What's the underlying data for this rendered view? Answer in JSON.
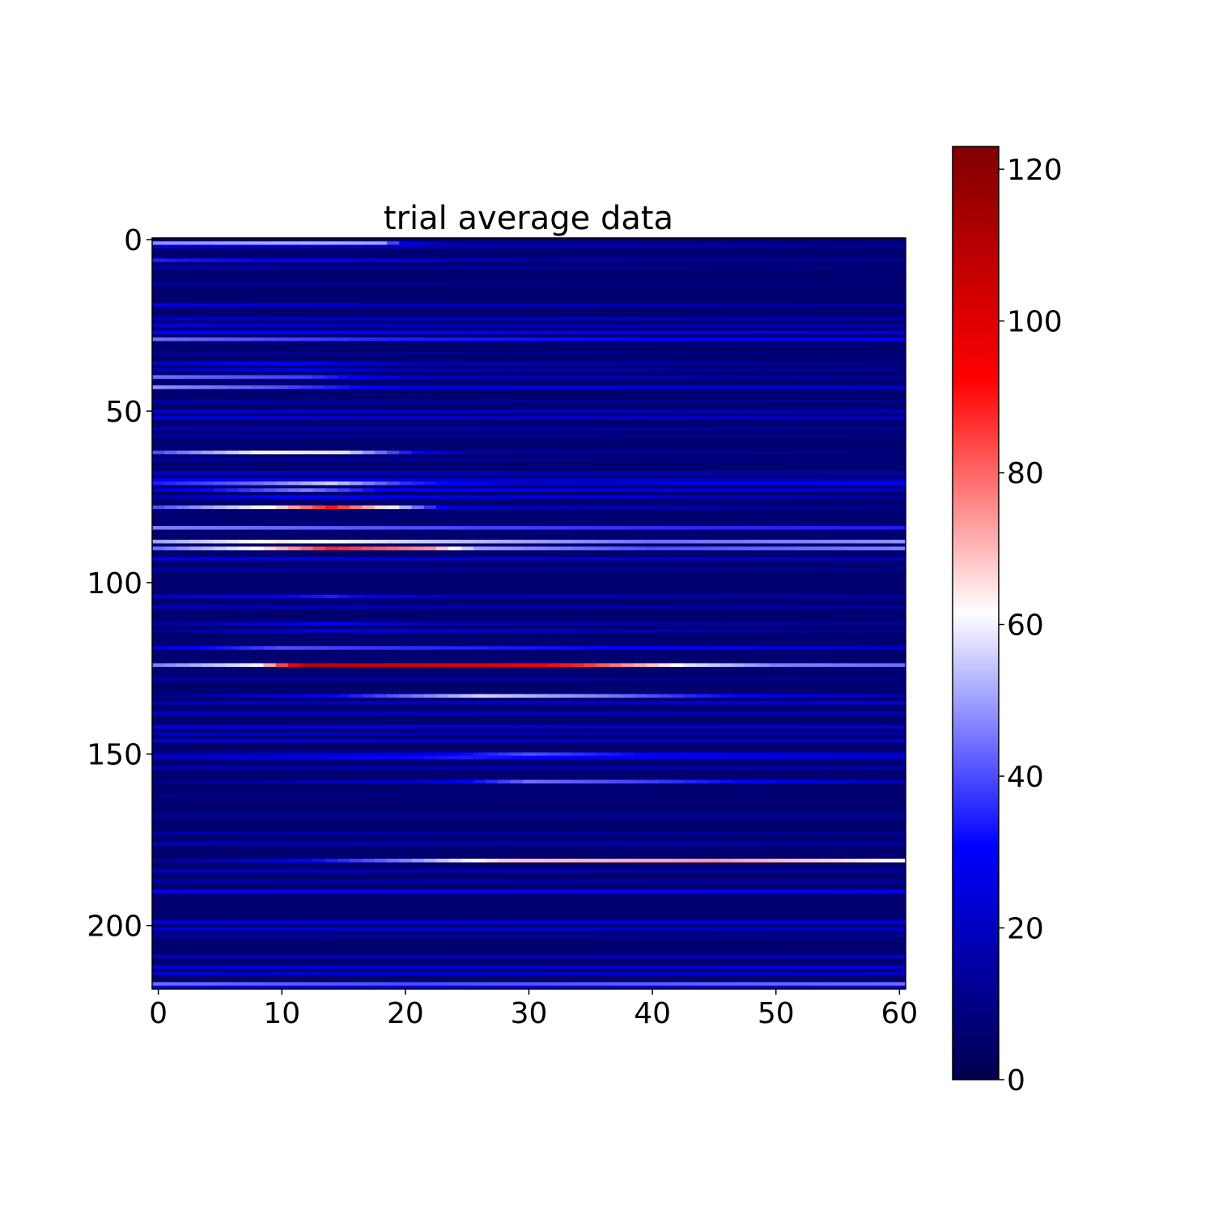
{
  "chart_data": {
    "type": "heatmap",
    "title": "trial average data",
    "xlabel": "",
    "ylabel": "",
    "n_columns": 61,
    "n_rows": 219,
    "xlim": [
      -0.5,
      60.5
    ],
    "ylim": [
      218.5,
      -0.5
    ],
    "x_ticks": [
      0,
      10,
      20,
      30,
      40,
      50,
      60
    ],
    "x_tick_labels": [
      "0",
      "10",
      "20",
      "30",
      "40",
      "50",
      "60"
    ],
    "y_ticks": [
      0,
      50,
      100,
      150,
      200
    ],
    "y_tick_labels": [
      "0",
      "50",
      "100",
      "150",
      "200"
    ],
    "colormap": "seismic",
    "colormap_stops": [
      "#00004d",
      "#0000ff",
      "#ffffff",
      "#ff0000",
      "#800000"
    ],
    "value_range": [
      0,
      123
    ],
    "colorbar_ticks": [
      0,
      20,
      40,
      60,
      80,
      100,
      120
    ],
    "colorbar_tick_labels": [
      "0",
      "20",
      "40",
      "60",
      "80",
      "100",
      "120"
    ],
    "background_level": 6,
    "rows": [
      {
        "row": 1,
        "profile": [
          [
            0,
            48
          ],
          [
            12,
            52
          ],
          [
            18,
            50
          ],
          [
            20,
            28
          ],
          [
            24,
            14
          ],
          [
            60,
            10
          ]
        ]
      },
      {
        "row": 2,
        "profile": [
          [
            0,
            22
          ],
          [
            20,
            18
          ],
          [
            60,
            10
          ]
        ]
      },
      {
        "row": 6,
        "profile": [
          [
            0,
            34
          ],
          [
            15,
            28
          ],
          [
            30,
            16
          ],
          [
            60,
            12
          ]
        ]
      },
      {
        "row": 8,
        "profile": [
          [
            0,
            16
          ],
          [
            60,
            8
          ]
        ]
      },
      {
        "row": 13,
        "profile": [
          [
            0,
            14
          ],
          [
            60,
            8
          ]
        ]
      },
      {
        "row": 19,
        "profile": [
          [
            0,
            26
          ],
          [
            20,
            20
          ],
          [
            60,
            14
          ]
        ]
      },
      {
        "row": 23,
        "profile": [
          [
            0,
            22
          ],
          [
            60,
            16
          ]
        ]
      },
      {
        "row": 25,
        "profile": [
          [
            0,
            24
          ],
          [
            20,
            18
          ],
          [
            60,
            14
          ]
        ]
      },
      {
        "row": 27,
        "profile": [
          [
            0,
            30
          ],
          [
            60,
            26
          ]
        ]
      },
      {
        "row": 29,
        "profile": [
          [
            0,
            44
          ],
          [
            20,
            34
          ],
          [
            60,
            28
          ]
        ]
      },
      {
        "row": 33,
        "profile": [
          [
            0,
            12
          ],
          [
            60,
            8
          ]
        ]
      },
      {
        "row": 36,
        "profile": [
          [
            0,
            20
          ],
          [
            10,
            30
          ],
          [
            20,
            18
          ],
          [
            60,
            10
          ]
        ]
      },
      {
        "row": 38,
        "profile": [
          [
            0,
            18
          ],
          [
            12,
            26
          ],
          [
            20,
            16
          ],
          [
            60,
            10
          ]
        ]
      },
      {
        "row": 40,
        "profile": [
          [
            0,
            44
          ],
          [
            12,
            38
          ],
          [
            20,
            22
          ],
          [
            60,
            12
          ]
        ]
      },
      {
        "row": 43,
        "profile": [
          [
            0,
            48
          ],
          [
            10,
            40
          ],
          [
            20,
            26
          ],
          [
            60,
            22
          ]
        ]
      },
      {
        "row": 47,
        "profile": [
          [
            0,
            16
          ],
          [
            60,
            10
          ]
        ]
      },
      {
        "row": 50,
        "profile": [
          [
            0,
            22
          ],
          [
            60,
            18
          ]
        ]
      },
      {
        "row": 52,
        "profile": [
          [
            0,
            26
          ],
          [
            60,
            20
          ]
        ]
      },
      {
        "row": 55,
        "profile": [
          [
            0,
            18
          ],
          [
            60,
            12
          ]
        ]
      },
      {
        "row": 57,
        "profile": [
          [
            0,
            14
          ],
          [
            60,
            10
          ]
        ]
      },
      {
        "row": 62,
        "profile": [
          [
            0,
            40
          ],
          [
            8,
            60
          ],
          [
            15,
            58
          ],
          [
            20,
            34
          ],
          [
            25,
            16
          ],
          [
            60,
            10
          ]
        ]
      },
      {
        "row": 64,
        "profile": [
          [
            0,
            14
          ],
          [
            60,
            8
          ]
        ]
      },
      {
        "row": 68,
        "profile": [
          [
            0,
            22
          ],
          [
            60,
            16
          ]
        ]
      },
      {
        "row": 70,
        "profile": [
          [
            0,
            28
          ],
          [
            12,
            24
          ],
          [
            60,
            16
          ]
        ]
      },
      {
        "row": 71,
        "profile": [
          [
            0,
            34
          ],
          [
            8,
            44
          ],
          [
            14,
            56
          ],
          [
            20,
            36
          ],
          [
            30,
            20
          ],
          [
            60,
            30
          ]
        ]
      },
      {
        "row": 73,
        "profile": [
          [
            0,
            24
          ],
          [
            12,
            46
          ],
          [
            18,
            30
          ],
          [
            60,
            22
          ]
        ]
      },
      {
        "row": 75,
        "profile": [
          [
            0,
            16
          ],
          [
            10,
            30
          ],
          [
            40,
            22
          ],
          [
            60,
            14
          ]
        ]
      },
      {
        "row": 78,
        "profile": [
          [
            0,
            40
          ],
          [
            9,
            62
          ],
          [
            14,
            90
          ],
          [
            18,
            66
          ],
          [
            24,
            22
          ],
          [
            60,
            10
          ]
        ]
      },
      {
        "row": 84,
        "profile": [
          [
            0,
            46
          ],
          [
            20,
            40
          ],
          [
            40,
            36
          ],
          [
            60,
            34
          ]
        ]
      },
      {
        "row": 88,
        "profile": [
          [
            0,
            50
          ],
          [
            10,
            64
          ],
          [
            20,
            56
          ],
          [
            40,
            44
          ],
          [
            60,
            48
          ]
        ]
      },
      {
        "row": 90,
        "profile": [
          [
            0,
            44
          ],
          [
            8,
            62
          ],
          [
            14,
            88
          ],
          [
            22,
            74
          ],
          [
            26,
            50
          ],
          [
            40,
            40
          ],
          [
            60,
            46
          ]
        ]
      },
      {
        "row": 93,
        "profile": [
          [
            0,
            26
          ],
          [
            60,
            18
          ]
        ]
      },
      {
        "row": 96,
        "profile": [
          [
            0,
            16
          ],
          [
            60,
            10
          ]
        ]
      },
      {
        "row": 104,
        "profile": [
          [
            0,
            22
          ],
          [
            14,
            34
          ],
          [
            24,
            20
          ],
          [
            60,
            14
          ]
        ]
      },
      {
        "row": 107,
        "profile": [
          [
            0,
            20
          ],
          [
            60,
            14
          ]
        ]
      },
      {
        "row": 112,
        "profile": [
          [
            0,
            14
          ],
          [
            14,
            30
          ],
          [
            22,
            18
          ],
          [
            60,
            12
          ]
        ]
      },
      {
        "row": 114,
        "profile": [
          [
            0,
            12
          ],
          [
            14,
            26
          ],
          [
            60,
            10
          ]
        ]
      },
      {
        "row": 119,
        "profile": [
          [
            0,
            26
          ],
          [
            10,
            40
          ],
          [
            20,
            36
          ],
          [
            40,
            30
          ],
          [
            60,
            22
          ]
        ]
      },
      {
        "row": 124,
        "profile": [
          [
            0,
            46
          ],
          [
            8,
            60
          ],
          [
            12,
            108
          ],
          [
            26,
            100
          ],
          [
            34,
            88
          ],
          [
            43,
            58
          ],
          [
            50,
            46
          ],
          [
            60,
            44
          ]
        ]
      },
      {
        "row": 128,
        "profile": [
          [
            0,
            16
          ],
          [
            60,
            10
          ]
        ]
      },
      {
        "row": 133,
        "profile": [
          [
            0,
            10
          ],
          [
            14,
            30
          ],
          [
            26,
            56
          ],
          [
            36,
            46
          ],
          [
            44,
            34
          ],
          [
            60,
            18
          ]
        ]
      },
      {
        "row": 135,
        "profile": [
          [
            0,
            18
          ],
          [
            60,
            24
          ]
        ]
      },
      {
        "row": 138,
        "profile": [
          [
            0,
            22
          ],
          [
            60,
            18
          ]
        ]
      },
      {
        "row": 142,
        "profile": [
          [
            0,
            26
          ],
          [
            60,
            22
          ]
        ]
      },
      {
        "row": 144,
        "profile": [
          [
            0,
            18
          ],
          [
            60,
            14
          ]
        ]
      },
      {
        "row": 146,
        "profile": [
          [
            0,
            24
          ],
          [
            60,
            22
          ]
        ]
      },
      {
        "row": 150,
        "profile": [
          [
            0,
            14
          ],
          [
            20,
            24
          ],
          [
            30,
            40
          ],
          [
            40,
            30
          ],
          [
            60,
            22
          ]
        ]
      },
      {
        "row": 151,
        "profile": [
          [
            0,
            20
          ],
          [
            25,
            34
          ],
          [
            35,
            28
          ],
          [
            60,
            20
          ]
        ]
      },
      {
        "row": 154,
        "profile": [
          [
            0,
            18
          ],
          [
            60,
            16
          ]
        ]
      },
      {
        "row": 158,
        "profile": [
          [
            0,
            10
          ],
          [
            22,
            22
          ],
          [
            30,
            44
          ],
          [
            40,
            38
          ],
          [
            50,
            28
          ],
          [
            60,
            18
          ]
        ]
      },
      {
        "row": 162,
        "profile": [
          [
            0,
            10
          ],
          [
            60,
            6
          ]
        ]
      },
      {
        "row": 168,
        "profile": [
          [
            0,
            14
          ],
          [
            60,
            14
          ]
        ]
      },
      {
        "row": 173,
        "profile": [
          [
            0,
            16
          ],
          [
            60,
            12
          ]
        ]
      },
      {
        "row": 176,
        "profile": [
          [
            0,
            18
          ],
          [
            60,
            14
          ]
        ]
      },
      {
        "row": 181,
        "profile": [
          [
            0,
            12
          ],
          [
            12,
            30
          ],
          [
            20,
            46
          ],
          [
            28,
            68
          ],
          [
            45,
            74
          ],
          [
            55,
            66
          ],
          [
            60,
            62
          ]
        ]
      },
      {
        "row": 184,
        "profile": [
          [
            0,
            20
          ],
          [
            60,
            14
          ]
        ]
      },
      {
        "row": 187,
        "profile": [
          [
            0,
            16
          ],
          [
            60,
            12
          ]
        ]
      },
      {
        "row": 190,
        "profile": [
          [
            0,
            28
          ],
          [
            60,
            30
          ]
        ]
      },
      {
        "row": 199,
        "profile": [
          [
            0,
            26
          ],
          [
            60,
            26
          ]
        ]
      },
      {
        "row": 201,
        "profile": [
          [
            0,
            22
          ],
          [
            60,
            20
          ]
        ]
      },
      {
        "row": 203,
        "profile": [
          [
            0,
            14
          ],
          [
            60,
            12
          ]
        ]
      },
      {
        "row": 209,
        "profile": [
          [
            0,
            20
          ],
          [
            60,
            22
          ]
        ]
      },
      {
        "row": 212,
        "profile": [
          [
            0,
            24
          ],
          [
            60,
            24
          ]
        ]
      },
      {
        "row": 214,
        "profile": [
          [
            0,
            22
          ],
          [
            60,
            20
          ]
        ]
      },
      {
        "row": 217,
        "profile": [
          [
            0,
            44
          ],
          [
            20,
            40
          ],
          [
            40,
            42
          ],
          [
            60,
            44
          ]
        ]
      },
      {
        "row": 218,
        "profile": [
          [
            0,
            26
          ],
          [
            60,
            24
          ]
        ]
      }
    ]
  }
}
